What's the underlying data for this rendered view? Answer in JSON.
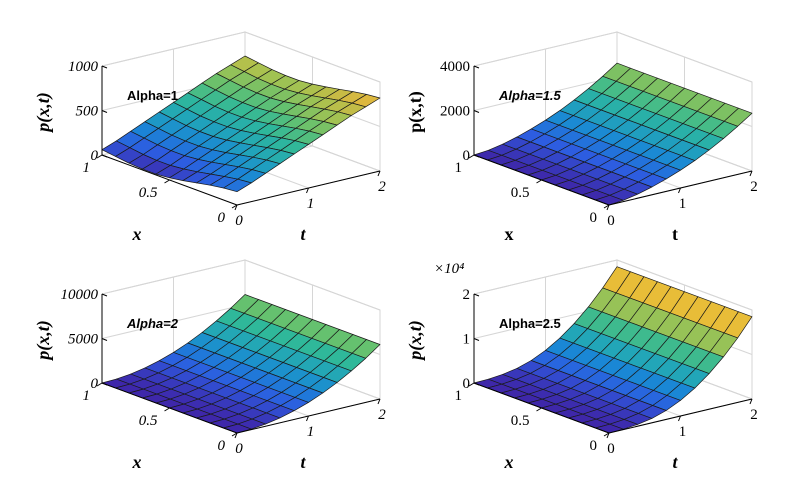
{
  "chart_data": [
    {
      "type": "surface",
      "annotation": "Alpha=1",
      "annotation_style": "plain",
      "xlabel": "x",
      "ylabel": "t",
      "zlabel": "p(x,t)",
      "label_style": "italic",
      "tick_style": "italic",
      "x_range": [
        0,
        1
      ],
      "t_range": [
        0,
        2
      ],
      "z_range": [
        0,
        1000
      ],
      "x_ticks": [
        "0",
        "0.5",
        "1"
      ],
      "t_ticks": [
        "0",
        "1",
        "2"
      ],
      "z_ticks": [
        "0",
        "500",
        "1000"
      ],
      "z_multiplier": "",
      "x": [
        0,
        0.1,
        0.2,
        0.3,
        0.4,
        0.5,
        0.6,
        0.7,
        0.8,
        0.9,
        1.0
      ],
      "t": [
        0,
        0.2,
        0.4,
        0.6,
        0.8,
        1.0,
        1.2,
        1.4,
        1.6,
        1.8,
        2.0
      ],
      "z_grid": [
        [
          150,
          210,
          280,
          350,
          420,
          490,
          560,
          630,
          700,
          760,
          820
        ],
        [
          135,
          195,
          265,
          335,
          405,
          475,
          545,
          615,
          685,
          745,
          805
        ],
        [
          110,
          170,
          240,
          310,
          380,
          450,
          520,
          590,
          660,
          720,
          780
        ],
        [
          80,
          140,
          210,
          280,
          350,
          420,
          490,
          560,
          630,
          690,
          750
        ],
        [
          50,
          110,
          180,
          250,
          320,
          390,
          460,
          530,
          600,
          660,
          720
        ],
        [
          25,
          85,
          155,
          225,
          295,
          365,
          435,
          505,
          575,
          635,
          695
        ],
        [
          10,
          70,
          140,
          210,
          280,
          350,
          420,
          490,
          560,
          620,
          680
        ],
        [
          10,
          70,
          140,
          210,
          280,
          350,
          420,
          490,
          560,
          620,
          680
        ],
        [
          20,
          80,
          150,
          220,
          290,
          360,
          430,
          500,
          570,
          630,
          690
        ],
        [
          40,
          100,
          170,
          240,
          310,
          380,
          450,
          520,
          590,
          650,
          710
        ],
        [
          60,
          120,
          190,
          260,
          330,
          400,
          470,
          540,
          610,
          670,
          730
        ]
      ]
    },
    {
      "type": "surface",
      "annotation": "Alpha=1.5",
      "annotation_style": "italic",
      "xlabel": "x",
      "ylabel": "t",
      "zlabel": "p(x,t)",
      "label_style": "bold",
      "tick_style": "plain",
      "x_range": [
        0,
        1
      ],
      "t_range": [
        0,
        2
      ],
      "z_range": [
        0,
        4000
      ],
      "x_ticks": [
        "0",
        "0.5",
        "1"
      ],
      "t_ticks": [
        "0",
        "1",
        "2"
      ],
      "z_ticks": [
        "0",
        "2000",
        "4000"
      ],
      "z_multiplier": "",
      "x": [
        0,
        0.1,
        0.2,
        0.3,
        0.4,
        0.5,
        0.6,
        0.7,
        0.8,
        0.9,
        1.0
      ],
      "t": [
        0,
        0.2,
        0.4,
        0.6,
        0.8,
        1.0,
        1.2,
        1.4,
        1.6,
        1.8,
        2.0
      ],
      "z_grid": [
        [
          0,
          60,
          180,
          350,
          560,
          800,
          1080,
          1400,
          1760,
          2160,
          2600
        ],
        [
          0,
          60,
          180,
          350,
          560,
          800,
          1080,
          1400,
          1760,
          2160,
          2600
        ],
        [
          0,
          60,
          180,
          350,
          560,
          800,
          1080,
          1400,
          1760,
          2160,
          2600
        ],
        [
          0,
          60,
          180,
          350,
          560,
          800,
          1080,
          1400,
          1760,
          2160,
          2600
        ],
        [
          0,
          60,
          180,
          350,
          560,
          800,
          1080,
          1400,
          1760,
          2160,
          2600
        ],
        [
          0,
          60,
          180,
          350,
          560,
          800,
          1080,
          1400,
          1760,
          2160,
          2600
        ],
        [
          0,
          60,
          180,
          350,
          560,
          800,
          1080,
          1400,
          1760,
          2160,
          2600
        ],
        [
          0,
          60,
          180,
          350,
          560,
          800,
          1080,
          1400,
          1760,
          2160,
          2600
        ],
        [
          0,
          60,
          180,
          350,
          560,
          800,
          1080,
          1400,
          1760,
          2160,
          2600
        ],
        [
          0,
          60,
          180,
          350,
          560,
          800,
          1080,
          1400,
          1760,
          2160,
          2600
        ],
        [
          0,
          60,
          180,
          350,
          560,
          800,
          1080,
          1400,
          1760,
          2160,
          2600
        ]
      ]
    },
    {
      "type": "surface",
      "annotation": "Alpha=2",
      "annotation_style": "italic",
      "xlabel": "x",
      "ylabel": "t",
      "zlabel": "p(x,t)",
      "label_style": "italic",
      "tick_style": "italic",
      "x_range": [
        0,
        1
      ],
      "t_range": [
        0,
        2
      ],
      "z_range": [
        0,
        10000
      ],
      "x_ticks": [
        "0",
        "0.5",
        "1"
      ],
      "t_ticks": [
        "0",
        "1",
        "2"
      ],
      "z_ticks": [
        "0",
        "5000",
        "10000"
      ],
      "z_multiplier": "",
      "x": [
        0,
        0.1,
        0.2,
        0.3,
        0.4,
        0.5,
        0.6,
        0.7,
        0.8,
        0.9,
        1.0
      ],
      "t": [
        0,
        0.2,
        0.4,
        0.6,
        0.8,
        1.0,
        1.2,
        1.4,
        1.6,
        1.8,
        2.0
      ],
      "z_grid": [
        [
          0,
          60,
          240,
          550,
          980,
          1530,
          2200,
          3000,
          3920,
          4960,
          6120
        ],
        [
          0,
          60,
          240,
          550,
          980,
          1530,
          2200,
          3000,
          3920,
          4960,
          6120
        ],
        [
          0,
          60,
          240,
          550,
          980,
          1530,
          2200,
          3000,
          3920,
          4960,
          6120
        ],
        [
          0,
          60,
          240,
          550,
          980,
          1530,
          2200,
          3000,
          3920,
          4960,
          6120
        ],
        [
          0,
          60,
          240,
          550,
          980,
          1530,
          2200,
          3000,
          3920,
          4960,
          6120
        ],
        [
          0,
          60,
          240,
          550,
          980,
          1530,
          2200,
          3000,
          3920,
          4960,
          6120
        ],
        [
          0,
          60,
          240,
          550,
          980,
          1530,
          2200,
          3000,
          3920,
          4960,
          6120
        ],
        [
          0,
          60,
          240,
          550,
          980,
          1530,
          2200,
          3000,
          3920,
          4960,
          6120
        ],
        [
          0,
          60,
          240,
          550,
          980,
          1530,
          2200,
          3000,
          3920,
          4960,
          6120
        ],
        [
          0,
          60,
          240,
          550,
          980,
          1530,
          2200,
          3000,
          3920,
          4960,
          6120
        ],
        [
          0,
          60,
          240,
          550,
          980,
          1530,
          2200,
          3000,
          3920,
          4960,
          6120
        ]
      ]
    },
    {
      "type": "surface",
      "annotation": "Alpha=2.5",
      "annotation_style": "plain",
      "xlabel": "x",
      "ylabel": "t",
      "zlabel": "p(x,t)",
      "label_style": "italic",
      "tick_style": "plain",
      "x_range": [
        0,
        1
      ],
      "t_range": [
        0,
        2
      ],
      "z_range": [
        0,
        2
      ],
      "x_ticks": [
        "0",
        "0.5",
        "1"
      ],
      "t_ticks": [
        "0",
        "1",
        "2"
      ],
      "z_ticks": [
        "0",
        "1",
        "2"
      ],
      "z_multiplier": "×10⁴",
      "x": [
        0,
        0.1,
        0.2,
        0.3,
        0.4,
        0.5,
        0.6,
        0.7,
        0.8,
        0.9,
        1.0
      ],
      "t": [
        0,
        0.2,
        0.4,
        0.6,
        0.8,
        1.0,
        1.2,
        1.4,
        1.6,
        1.8,
        2.0
      ],
      "z_grid": [
        [
          0,
          0.01,
          0.04,
          0.1,
          0.2,
          0.35,
          0.55,
          0.8,
          1.1,
          1.45,
          1.85
        ],
        [
          0,
          0.01,
          0.04,
          0.1,
          0.2,
          0.35,
          0.55,
          0.8,
          1.1,
          1.45,
          1.85
        ],
        [
          0,
          0.01,
          0.04,
          0.1,
          0.2,
          0.35,
          0.55,
          0.8,
          1.1,
          1.45,
          1.85
        ],
        [
          0,
          0.01,
          0.04,
          0.1,
          0.2,
          0.35,
          0.55,
          0.8,
          1.1,
          1.45,
          1.85
        ],
        [
          0,
          0.01,
          0.04,
          0.1,
          0.2,
          0.35,
          0.55,
          0.8,
          1.1,
          1.45,
          1.85
        ],
        [
          0,
          0.01,
          0.04,
          0.1,
          0.2,
          0.35,
          0.55,
          0.8,
          1.1,
          1.45,
          1.85
        ],
        [
          0,
          0.01,
          0.04,
          0.1,
          0.2,
          0.35,
          0.55,
          0.8,
          1.1,
          1.45,
          1.85
        ],
        [
          0,
          0.01,
          0.04,
          0.1,
          0.2,
          0.35,
          0.55,
          0.8,
          1.1,
          1.45,
          1.85
        ],
        [
          0,
          0.01,
          0.04,
          0.1,
          0.2,
          0.35,
          0.55,
          0.8,
          1.1,
          1.45,
          1.85
        ],
        [
          0,
          0.01,
          0.04,
          0.1,
          0.2,
          0.35,
          0.55,
          0.8,
          1.1,
          1.45,
          1.85
        ],
        [
          0,
          0.01,
          0.04,
          0.1,
          0.2,
          0.35,
          0.55,
          0.8,
          1.1,
          1.45,
          1.85
        ]
      ]
    }
  ],
  "colormap": [
    "#3e26a8",
    "#2d5ce0",
    "#1a86d6",
    "#21a5b9",
    "#2fb89a",
    "#66c16e",
    "#a8c24f",
    "#dcb73f",
    "#f8c42e",
    "#f9e61e"
  ]
}
